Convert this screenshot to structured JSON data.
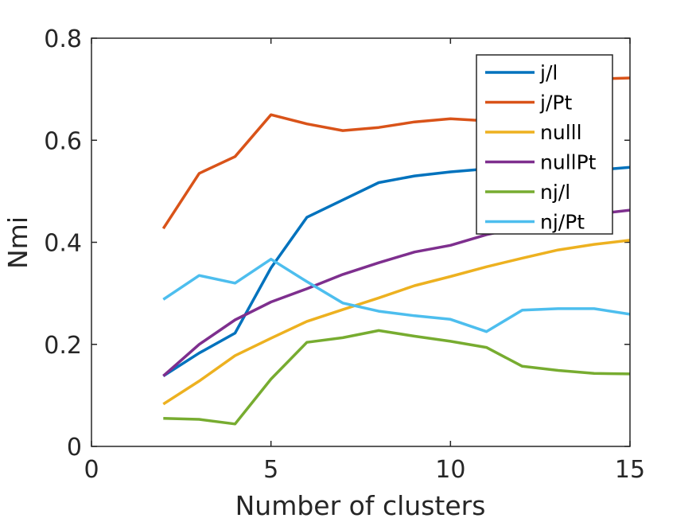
{
  "chart_data": {
    "type": "line",
    "title": "",
    "xlabel": "Number of clusters",
    "ylabel": "Nmi",
    "xlim": [
      0,
      15
    ],
    "ylim": [
      0,
      0.8
    ],
    "xticks": [
      0,
      5,
      10,
      15
    ],
    "yticks": [
      0,
      0.2,
      0.4,
      0.6,
      0.8
    ],
    "xtick_labels": [
      "0",
      "5",
      "10",
      "15"
    ],
    "ytick_labels": [
      "0",
      "0.2",
      "0.4",
      "0.6",
      "0.8"
    ],
    "grid": false,
    "legend_position": "top-right",
    "x": [
      2,
      3,
      4,
      5,
      6,
      7,
      8,
      9,
      10,
      11,
      12,
      13,
      14,
      15
    ],
    "series": [
      {
        "name": "j/l",
        "color": "#0072bd",
        "values": [
          0.138,
          0.183,
          0.222,
          0.35,
          0.449,
          0.483,
          0.517,
          0.53,
          0.538,
          0.544,
          0.548,
          0.545,
          0.541,
          0.547
        ]
      },
      {
        "name": "j/Pt",
        "color": "#d95319",
        "values": [
          0.427,
          0.535,
          0.568,
          0.65,
          0.632,
          0.619,
          0.625,
          0.636,
          0.642,
          0.638,
          0.66,
          0.69,
          0.72,
          0.722
        ]
      },
      {
        "name": "nulll",
        "color": "#edb120",
        "values": [
          0.083,
          0.128,
          0.178,
          0.212,
          0.245,
          0.268,
          0.291,
          0.315,
          0.333,
          0.352,
          0.369,
          0.385,
          0.396,
          0.404
        ]
      },
      {
        "name": "nullPt",
        "color": "#7e2f8e",
        "values": [
          0.138,
          0.2,
          0.248,
          0.283,
          0.309,
          0.337,
          0.36,
          0.381,
          0.394,
          0.415,
          0.43,
          0.445,
          0.455,
          0.463
        ]
      },
      {
        "name": "nj/l",
        "color": "#77ac30",
        "values": [
          0.055,
          0.053,
          0.044,
          0.132,
          0.204,
          0.213,
          0.227,
          0.216,
          0.206,
          0.194,
          0.157,
          0.149,
          0.143,
          0.142
        ]
      },
      {
        "name": "nj/Pt",
        "color": "#4dbeee",
        "values": [
          0.288,
          0.335,
          0.32,
          0.367,
          0.323,
          0.281,
          0.265,
          0.256,
          0.249,
          0.225,
          0.267,
          0.27,
          0.27,
          0.259
        ]
      }
    ]
  }
}
